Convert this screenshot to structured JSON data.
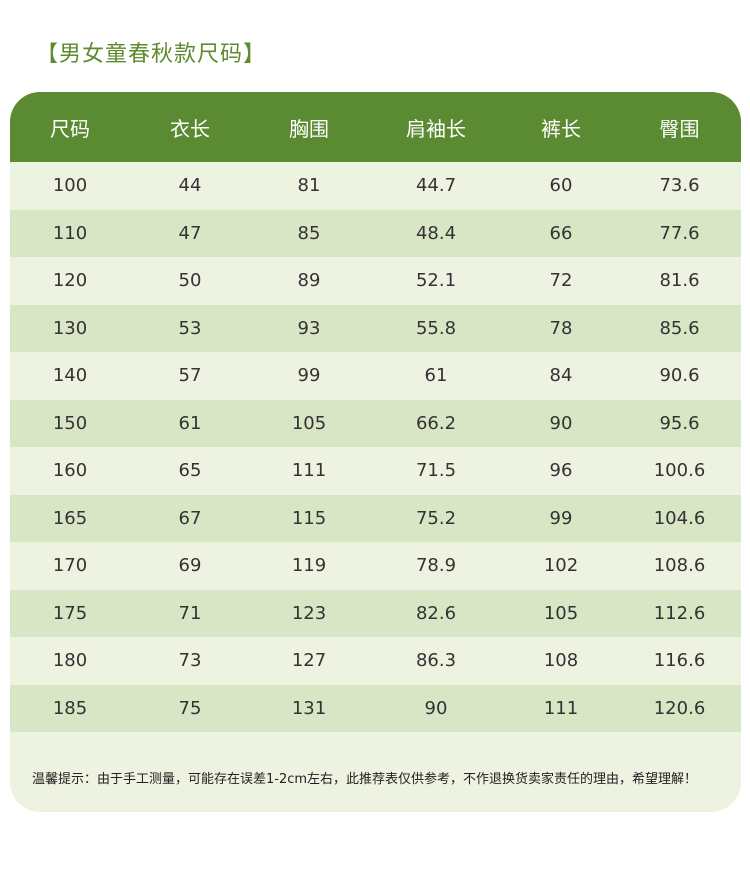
{
  "title": "【男女童春秋款尺码】",
  "table": {
    "headers": [
      "尺码",
      "衣长",
      "胸围",
      "肩袖长",
      "裤长",
      "臀围"
    ],
    "rows": [
      [
        "100",
        "44",
        "81",
        "44.7",
        "60",
        "73.6"
      ],
      [
        "110",
        "47",
        "85",
        "48.4",
        "66",
        "77.6"
      ],
      [
        "120",
        "50",
        "89",
        "52.1",
        "72",
        "81.6"
      ],
      [
        "130",
        "53",
        "93",
        "55.8",
        "78",
        "85.6"
      ],
      [
        "140",
        "57",
        "99",
        "61",
        "84",
        "90.6"
      ],
      [
        "150",
        "61",
        "105",
        "66.2",
        "90",
        "95.6"
      ],
      [
        "160",
        "65",
        "111",
        "71.5",
        "96",
        "100.6"
      ],
      [
        "165",
        "67",
        "115",
        "75.2",
        "99",
        "104.6"
      ],
      [
        "170",
        "69",
        "119",
        "78.9",
        "102",
        "108.6"
      ],
      [
        "175",
        "71",
        "123",
        "82.6",
        "105",
        "112.6"
      ],
      [
        "180",
        "73",
        "127",
        "86.3",
        "108",
        "116.6"
      ],
      [
        "185",
        "75",
        "131",
        "90",
        "111",
        "120.6"
      ]
    ]
  },
  "note": "温馨提示：由于手工测量，可能存在误差1-2cm左右，此推荐表仅供参考，不作退换货卖家责任的理由，希望理解！",
  "colors": {
    "header_bg": "#5a8a31",
    "row_light": "#eef2e0",
    "row_dark": "#d9e6c5",
    "title": "#5e8b2f"
  }
}
